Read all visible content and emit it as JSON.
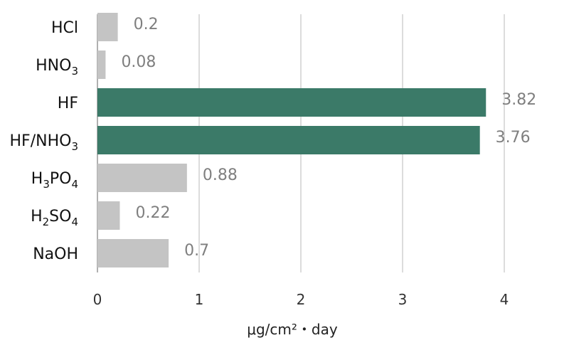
{
  "chart_data": {
    "type": "bar",
    "orientation": "horizontal",
    "title": "",
    "xlabel": "μg/cm²・day",
    "ylabel": "",
    "xlim": [
      0,
      4
    ],
    "grid": true,
    "categories": [
      "HCl",
      "HNO3",
      "HF",
      "HF/NHO3",
      "H3PO4",
      "H2SO4",
      "NaOH"
    ],
    "category_labels": [
      [
        {
          "t": "HCl"
        }
      ],
      [
        {
          "t": "HNO"
        },
        {
          "t": "3",
          "sub": true
        }
      ],
      [
        {
          "t": "HF"
        }
      ],
      [
        {
          "t": "HF/NHO"
        },
        {
          "t": "3",
          "sub": true
        }
      ],
      [
        {
          "t": "H"
        },
        {
          "t": "3",
          "sub": true
        },
        {
          "t": "PO"
        },
        {
          "t": "4",
          "sub": true
        }
      ],
      [
        {
          "t": "H"
        },
        {
          "t": "2",
          "sub": true
        },
        {
          "t": "SO"
        },
        {
          "t": "4",
          "sub": true
        }
      ],
      [
        {
          "t": "NaOH"
        }
      ]
    ],
    "values": [
      0.2,
      0.08,
      3.82,
      3.76,
      0.88,
      0.22,
      0.7
    ],
    "value_labels": [
      "0.2",
      "0.08",
      "3.82",
      "3.76",
      "0.88",
      "0.22",
      "0.7"
    ],
    "x_ticks": [
      "0",
      "1",
      "2",
      "3",
      "4"
    ],
    "colors": {
      "default": "#c4c4c4",
      "highlight": "#3b7a68",
      "grid": "#d0d0d0",
      "axis": "#b0b0b0",
      "value_text": "#7f7f7f"
    },
    "highlight_categories": [
      "HF",
      "HF/NHO3"
    ]
  }
}
